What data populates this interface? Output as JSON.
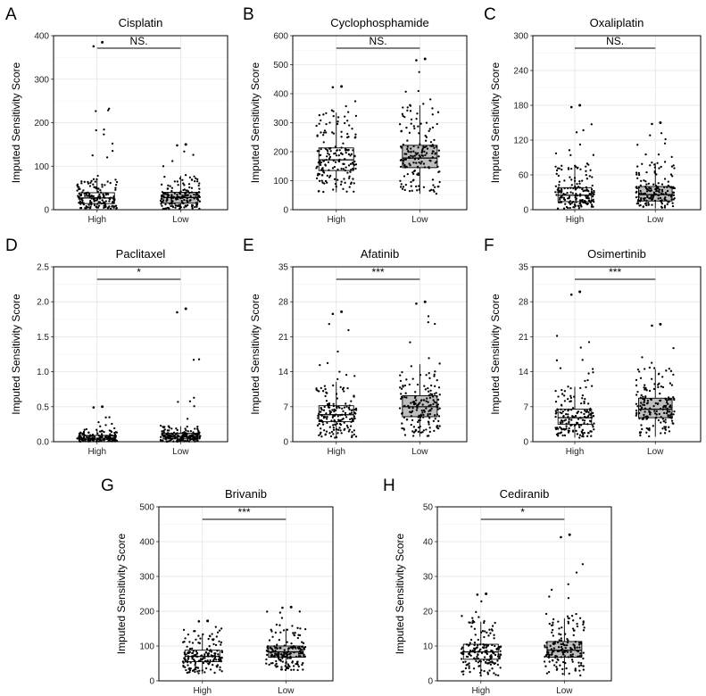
{
  "chart_data": [
    {
      "letter": "A",
      "type": "box",
      "title": "Cisplatin",
      "ylabel": "Imputed Sensitivity Score",
      "categories": [
        "High",
        "Low"
      ],
      "ylim": [
        0,
        400
      ],
      "yticks": [
        0,
        100,
        200,
        300,
        400
      ],
      "significance": "NS.",
      "boxes": [
        {
          "group": "High",
          "median": 27,
          "q1": 14,
          "q3": 39,
          "whisker_low": 2,
          "whisker_high": 70,
          "max": 385,
          "fill": "#ffffff"
        },
        {
          "group": "Low",
          "median": 28,
          "q1": 15,
          "q3": 40,
          "whisker_low": 2,
          "whisker_high": 78,
          "max": 150,
          "fill": "#bdbdbd"
        }
      ]
    },
    {
      "letter": "B",
      "type": "box",
      "title": "Cyclophosphamide",
      "ylabel": "Imputed Sensitivity Score",
      "categories": [
        "High",
        "Low"
      ],
      "ylim": [
        0,
        600
      ],
      "yticks": [
        0,
        100,
        200,
        300,
        400,
        500,
        600
      ],
      "significance": "NS.",
      "boxes": [
        {
          "group": "High",
          "median": 172,
          "q1": 135,
          "q3": 213,
          "whisker_low": 60,
          "whisker_high": 335,
          "max": 425,
          "fill": "#ffffff"
        },
        {
          "group": "Low",
          "median": 178,
          "q1": 145,
          "q3": 222,
          "whisker_low": 55,
          "whisker_high": 360,
          "max": 520,
          "fill": "#bdbdbd"
        }
      ]
    },
    {
      "letter": "C",
      "type": "box",
      "title": "Oxaliplatin",
      "ylabel": "Imputed Sensitivity Score",
      "categories": [
        "High",
        "Low"
      ],
      "ylim": [
        0,
        300
      ],
      "yticks": [
        0,
        60,
        120,
        180,
        240,
        300
      ],
      "significance": "NS.",
      "boxes": [
        {
          "group": "High",
          "median": 25,
          "q1": 14,
          "q3": 38,
          "whisker_low": 2,
          "whisker_high": 75,
          "max": 180,
          "fill": "#ffffff"
        },
        {
          "group": "Low",
          "median": 26,
          "q1": 15,
          "q3": 40,
          "whisker_low": 2,
          "whisker_high": 80,
          "max": 150,
          "fill": "#bdbdbd"
        }
      ]
    },
    {
      "letter": "D",
      "type": "box",
      "title": "Paclitaxel",
      "ylabel": "Imputed Sensitivity Score",
      "categories": [
        "High",
        "Low"
      ],
      "ylim": [
        0,
        2.5
      ],
      "yticks": [
        0.0,
        0.5,
        1.0,
        1.5,
        2.0,
        2.5
      ],
      "significance": "*",
      "boxes": [
        {
          "group": "High",
          "median": 0.05,
          "q1": 0.03,
          "q3": 0.09,
          "whisker_low": 0.0,
          "whisker_high": 0.17,
          "max": 0.5,
          "fill": "#ffffff"
        },
        {
          "group": "Low",
          "median": 0.07,
          "q1": 0.04,
          "q3": 0.12,
          "whisker_low": 0.0,
          "whisker_high": 0.22,
          "max": 1.9,
          "fill": "#bdbdbd"
        }
      ]
    },
    {
      "letter": "E",
      "type": "box",
      "title": "Afatinib",
      "ylabel": "Imputed Sensitivity Score",
      "categories": [
        "High",
        "Low"
      ],
      "ylim": [
        0,
        35
      ],
      "yticks": [
        0,
        7,
        14,
        21,
        28,
        35
      ],
      "significance": "***",
      "boxes": [
        {
          "group": "High",
          "median": 5.4,
          "q1": 4.0,
          "q3": 7.2,
          "whisker_low": 0.8,
          "whisker_high": 12,
          "max": 26,
          "fill": "#ffffff"
        },
        {
          "group": "Low",
          "median": 7.0,
          "q1": 5.0,
          "q3": 9.2,
          "whisker_low": 1.0,
          "whisker_high": 15.5,
          "max": 28,
          "fill": "#bdbdbd"
        }
      ]
    },
    {
      "letter": "F",
      "type": "box",
      "title": "Osimertinib",
      "ylabel": "Imputed Sensitivity Score",
      "categories": [
        "High",
        "Low"
      ],
      "ylim": [
        0,
        35
      ],
      "yticks": [
        0,
        7,
        14,
        21,
        28,
        35
      ],
      "significance": "***",
      "boxes": [
        {
          "group": "High",
          "median": 4.8,
          "q1": 3.5,
          "q3": 6.5,
          "whisker_low": 0.8,
          "whisker_high": 11,
          "max": 30,
          "fill": "#ffffff"
        },
        {
          "group": "Low",
          "median": 6.5,
          "q1": 4.8,
          "q3": 8.7,
          "whisker_low": 1.0,
          "whisker_high": 14.5,
          "max": 23.5,
          "fill": "#bdbdbd"
        }
      ]
    },
    {
      "letter": "G",
      "type": "box",
      "title": "Brivanib",
      "ylabel": "Imputed Sensitivity Score",
      "categories": [
        "High",
        "Low"
      ],
      "ylim": [
        0,
        500
      ],
      "yticks": [
        0,
        100,
        200,
        300,
        400,
        500
      ],
      "significance": "***",
      "boxes": [
        {
          "group": "High",
          "median": 70,
          "q1": 55,
          "q3": 88,
          "whisker_low": 20,
          "whisker_high": 135,
          "max": 172,
          "fill": "#ffffff"
        },
        {
          "group": "Low",
          "median": 83,
          "q1": 68,
          "q3": 100,
          "whisker_low": 30,
          "whisker_high": 150,
          "max": 212,
          "fill": "#bdbdbd"
        }
      ]
    },
    {
      "letter": "H",
      "type": "box",
      "title": "Cediranib",
      "ylabel": "Imputed Sensitivity Score",
      "categories": [
        "High",
        "Low"
      ],
      "ylim": [
        0,
        50
      ],
      "yticks": [
        0,
        10,
        20,
        30,
        40,
        50
      ],
      "significance": "*",
      "boxes": [
        {
          "group": "High",
          "median": 8.3,
          "q1": 6.2,
          "q3": 10.5,
          "whisker_low": 1.5,
          "whisker_high": 17,
          "max": 25,
          "fill": "#ffffff"
        },
        {
          "group": "Low",
          "median": 8.8,
          "q1": 6.8,
          "q3": 11.3,
          "whisker_low": 1.5,
          "whisker_high": 18,
          "max": 42,
          "fill": "#bdbdbd"
        }
      ]
    }
  ]
}
